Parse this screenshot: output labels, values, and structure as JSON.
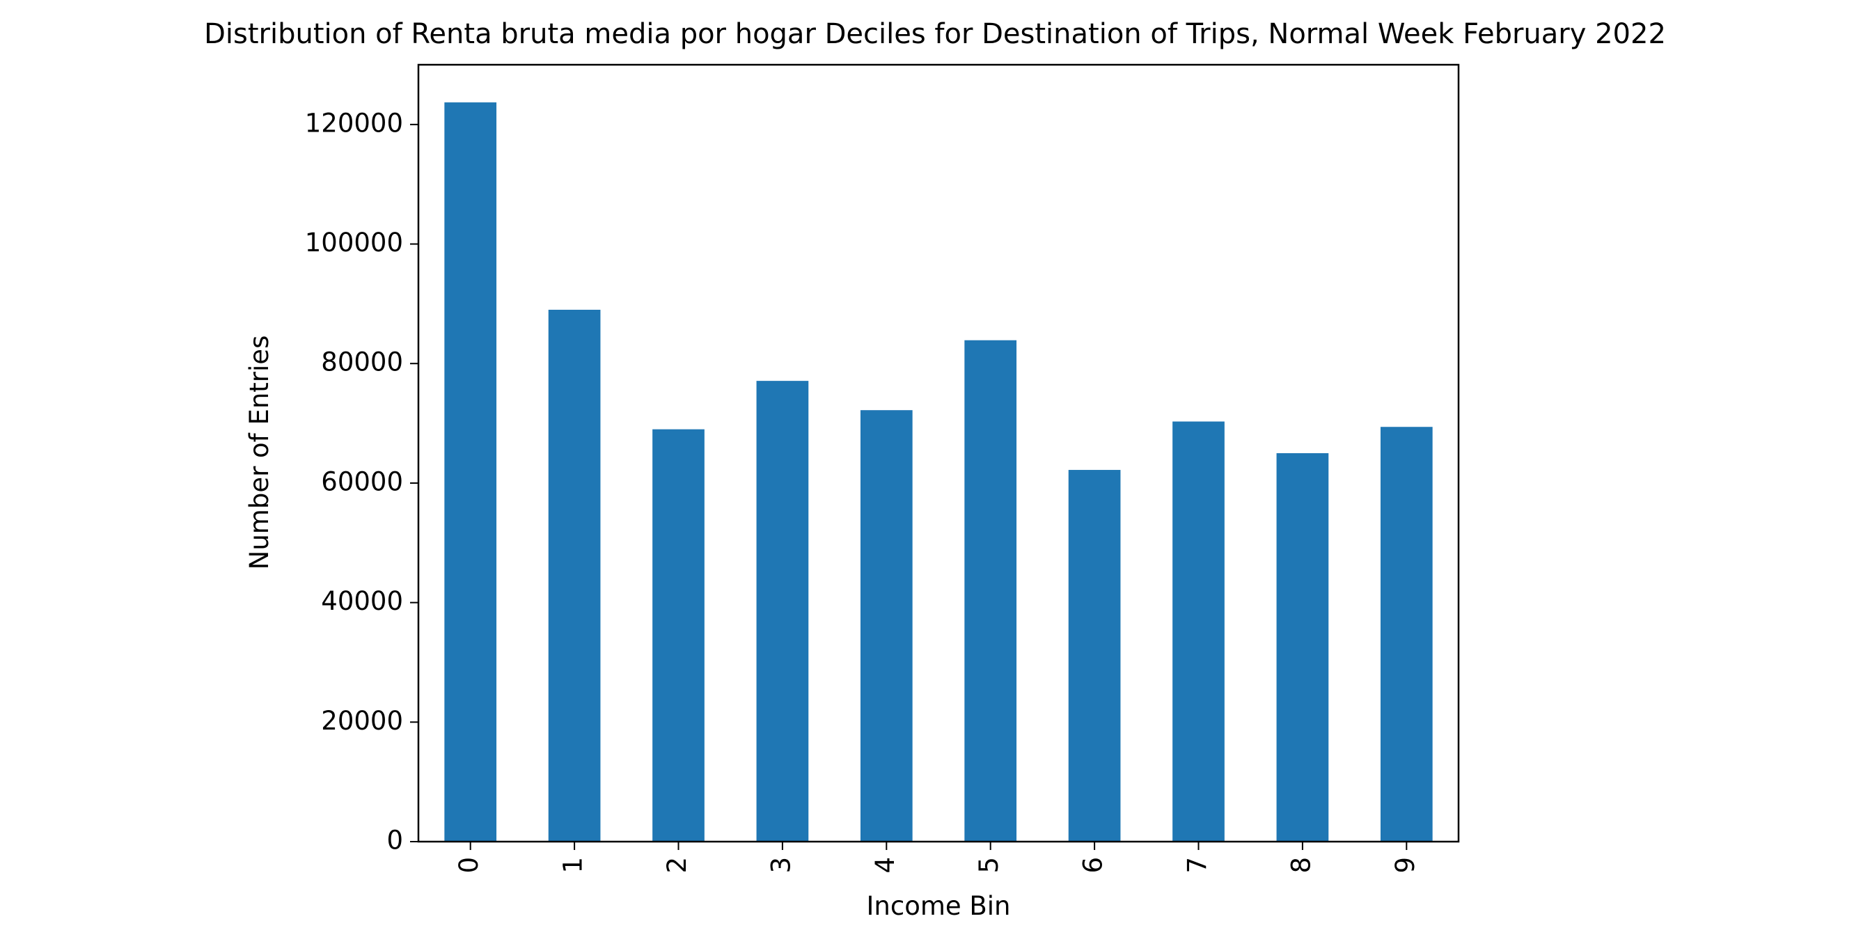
{
  "chart_data": {
    "type": "bar",
    "title": "Distribution of Renta bruta media por hogar Deciles for Destination of Trips, Normal Week February 2022",
    "xlabel": "Income Bin",
    "ylabel": "Number of Entries",
    "categories": [
      "0",
      "1",
      "2",
      "3",
      "4",
      "5",
      "6",
      "7",
      "8",
      "9"
    ],
    "values": [
      123700,
      89000,
      69000,
      77100,
      72200,
      83900,
      62200,
      70300,
      65000,
      69400
    ],
    "ylim": [
      0,
      130000
    ],
    "yticks": [
      0,
      20000,
      40000,
      60000,
      80000,
      100000,
      120000
    ],
    "grid": false,
    "bar_color": "#1f77b4"
  }
}
